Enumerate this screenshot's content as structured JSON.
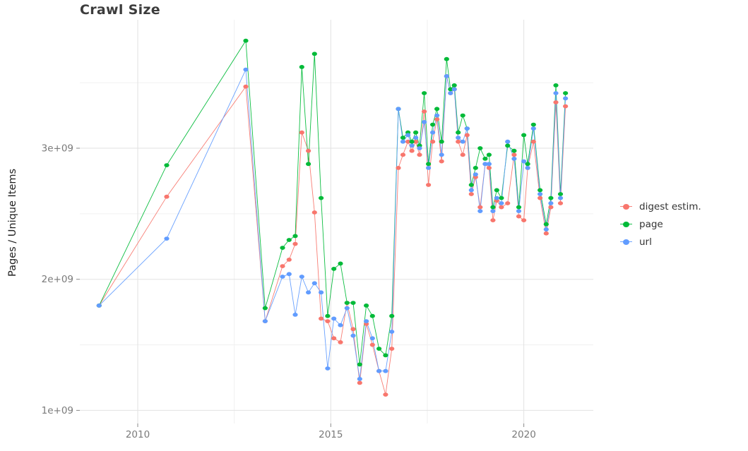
{
  "page": {
    "background": "#ffffff"
  },
  "chart_data": {
    "type": "line",
    "title": "Crawl Size",
    "subtitle": "",
    "xlabel": "",
    "ylabel": "Pages / Unique Items",
    "unit": "billions of pages (1e9)",
    "grid": true,
    "legend_position": "right",
    "xlim": [
      2008.5,
      2021.8
    ],
    "ylim": [
      0.9,
      3.98
    ],
    "x_ticks": [
      2010,
      2015,
      2020
    ],
    "x_minor_ticks": [
      2012.5,
      2017.5
    ],
    "y_ticks": [
      1,
      2,
      3
    ],
    "y_tick_labels": [
      "1e+09",
      "2e+09",
      "3e+09"
    ],
    "y_minor_ticks": [
      1.5,
      2.5,
      3.5
    ],
    "series": [
      {
        "name": "digest estim.",
        "color": "#F8766D",
        "points": [
          [
            2009.0,
            1.8
          ],
          [
            2010.75,
            2.63
          ],
          [
            2012.8,
            3.47
          ],
          [
            2013.3,
            1.68
          ],
          [
            2013.75,
            2.1
          ],
          [
            2013.92,
            2.15
          ],
          [
            2014.08,
            2.27
          ],
          [
            2014.25,
            3.12
          ],
          [
            2014.42,
            2.98
          ],
          [
            2014.58,
            2.51
          ],
          [
            2014.75,
            1.7
          ],
          [
            2014.92,
            1.68
          ],
          [
            2015.08,
            1.55
          ],
          [
            2015.25,
            1.52
          ],
          [
            2015.42,
            1.82
          ],
          [
            2015.58,
            1.62
          ],
          [
            2015.75,
            1.21
          ],
          [
            2015.92,
            1.66
          ],
          [
            2016.08,
            1.5
          ],
          [
            2016.25,
            1.3
          ],
          [
            2016.42,
            1.12
          ],
          [
            2016.58,
            1.47
          ],
          [
            2016.75,
            2.85
          ],
          [
            2016.87,
            2.95
          ],
          [
            2017.0,
            3.05
          ],
          [
            2017.1,
            2.98
          ],
          [
            2017.2,
            3.05
          ],
          [
            2017.3,
            2.95
          ],
          [
            2017.42,
            3.28
          ],
          [
            2017.53,
            2.72
          ],
          [
            2017.64,
            3.05
          ],
          [
            2017.75,
            3.22
          ],
          [
            2017.87,
            2.9
          ],
          [
            2018.0,
            3.55
          ],
          [
            2018.1,
            3.42
          ],
          [
            2018.2,
            3.45
          ],
          [
            2018.3,
            3.05
          ],
          [
            2018.42,
            2.95
          ],
          [
            2018.53,
            3.1
          ],
          [
            2018.64,
            2.65
          ],
          [
            2018.75,
            2.78
          ],
          [
            2018.87,
            2.55
          ],
          [
            2019.0,
            2.88
          ],
          [
            2019.1,
            2.85
          ],
          [
            2019.2,
            2.45
          ],
          [
            2019.3,
            2.6
          ],
          [
            2019.42,
            2.55
          ],
          [
            2019.58,
            2.58
          ],
          [
            2019.75,
            2.95
          ],
          [
            2019.87,
            2.48
          ],
          [
            2020.0,
            2.45
          ],
          [
            2020.1,
            2.85
          ],
          [
            2020.25,
            3.05
          ],
          [
            2020.42,
            2.62
          ],
          [
            2020.58,
            2.35
          ],
          [
            2020.7,
            2.55
          ],
          [
            2020.83,
            3.35
          ],
          [
            2020.95,
            2.58
          ],
          [
            2021.08,
            3.32
          ]
        ]
      },
      {
        "name": "page",
        "color": "#00BA38",
        "points": [
          [
            2009.0,
            1.8
          ],
          [
            2010.75,
            2.87
          ],
          [
            2012.8,
            3.82
          ],
          [
            2013.3,
            1.78
          ],
          [
            2013.75,
            2.24
          ],
          [
            2013.92,
            2.3
          ],
          [
            2014.08,
            2.33
          ],
          [
            2014.25,
            3.62
          ],
          [
            2014.42,
            2.88
          ],
          [
            2014.58,
            3.72
          ],
          [
            2014.75,
            2.62
          ],
          [
            2014.92,
            1.72
          ],
          [
            2015.08,
            2.08
          ],
          [
            2015.25,
            2.12
          ],
          [
            2015.42,
            1.82
          ],
          [
            2015.58,
            1.82
          ],
          [
            2015.75,
            1.35
          ],
          [
            2015.92,
            1.8
          ],
          [
            2016.08,
            1.72
          ],
          [
            2016.25,
            1.47
          ],
          [
            2016.42,
            1.42
          ],
          [
            2016.58,
            1.72
          ],
          [
            2016.75,
            3.3
          ],
          [
            2016.87,
            3.08
          ],
          [
            2017.0,
            3.12
          ],
          [
            2017.1,
            3.05
          ],
          [
            2017.2,
            3.12
          ],
          [
            2017.3,
            3.02
          ],
          [
            2017.42,
            3.42
          ],
          [
            2017.53,
            2.88
          ],
          [
            2017.64,
            3.18
          ],
          [
            2017.75,
            3.3
          ],
          [
            2017.87,
            3.05
          ],
          [
            2018.0,
            3.68
          ],
          [
            2018.1,
            3.45
          ],
          [
            2018.2,
            3.48
          ],
          [
            2018.3,
            3.12
          ],
          [
            2018.42,
            3.25
          ],
          [
            2018.53,
            3.15
          ],
          [
            2018.64,
            2.72
          ],
          [
            2018.75,
            2.85
          ],
          [
            2018.87,
            3.0
          ],
          [
            2019.0,
            2.92
          ],
          [
            2019.1,
            2.95
          ],
          [
            2019.2,
            2.55
          ],
          [
            2019.3,
            2.68
          ],
          [
            2019.42,
            2.62
          ],
          [
            2019.58,
            3.02
          ],
          [
            2019.75,
            2.98
          ],
          [
            2019.87,
            2.55
          ],
          [
            2020.0,
            3.1
          ],
          [
            2020.1,
            2.88
          ],
          [
            2020.25,
            3.18
          ],
          [
            2020.42,
            2.68
          ],
          [
            2020.58,
            2.42
          ],
          [
            2020.7,
            2.62
          ],
          [
            2020.83,
            3.48
          ],
          [
            2020.95,
            2.65
          ],
          [
            2021.08,
            3.42
          ]
        ]
      },
      {
        "name": "url",
        "color": "#619CFF",
        "points": [
          [
            2009.0,
            1.8
          ],
          [
            2010.75,
            2.31
          ],
          [
            2012.8,
            3.6
          ],
          [
            2013.3,
            1.68
          ],
          [
            2013.75,
            2.02
          ],
          [
            2013.92,
            2.04
          ],
          [
            2014.08,
            1.73
          ],
          [
            2014.25,
            2.02
          ],
          [
            2014.42,
            1.9
          ],
          [
            2014.58,
            1.97
          ],
          [
            2014.75,
            1.9
          ],
          [
            2014.92,
            1.32
          ],
          [
            2015.08,
            1.7
          ],
          [
            2015.25,
            1.65
          ],
          [
            2015.42,
            1.78
          ],
          [
            2015.58,
            1.57
          ],
          [
            2015.75,
            1.24
          ],
          [
            2015.92,
            1.68
          ],
          [
            2016.08,
            1.55
          ],
          [
            2016.25,
            1.3
          ],
          [
            2016.42,
            1.3
          ],
          [
            2016.58,
            1.6
          ],
          [
            2016.75,
            3.3
          ],
          [
            2016.87,
            3.05
          ],
          [
            2017.0,
            3.1
          ],
          [
            2017.1,
            3.02
          ],
          [
            2017.2,
            3.08
          ],
          [
            2017.3,
            3.0
          ],
          [
            2017.42,
            3.2
          ],
          [
            2017.53,
            2.85
          ],
          [
            2017.64,
            3.12
          ],
          [
            2017.75,
            3.25
          ],
          [
            2017.87,
            2.95
          ],
          [
            2018.0,
            3.55
          ],
          [
            2018.1,
            3.42
          ],
          [
            2018.2,
            3.45
          ],
          [
            2018.3,
            3.08
          ],
          [
            2018.42,
            3.05
          ],
          [
            2018.53,
            3.15
          ],
          [
            2018.64,
            2.68
          ],
          [
            2018.75,
            2.8
          ],
          [
            2018.87,
            2.52
          ],
          [
            2019.0,
            2.88
          ],
          [
            2019.1,
            2.88
          ],
          [
            2019.2,
            2.52
          ],
          [
            2019.3,
            2.62
          ],
          [
            2019.42,
            2.58
          ],
          [
            2019.58,
            3.05
          ],
          [
            2019.75,
            2.92
          ],
          [
            2019.87,
            2.52
          ],
          [
            2020.0,
            2.9
          ],
          [
            2020.1,
            2.85
          ],
          [
            2020.25,
            3.15
          ],
          [
            2020.42,
            2.65
          ],
          [
            2020.58,
            2.38
          ],
          [
            2020.7,
            2.58
          ],
          [
            2020.83,
            3.42
          ],
          [
            2020.95,
            2.62
          ],
          [
            2021.08,
            3.38
          ]
        ]
      }
    ]
  },
  "style": {
    "grid_major_color": "#e2e2e2",
    "grid_minor_color": "#f0f0f0",
    "tick_color": "#8a8a8a",
    "tick_label_color": "#7a7a7a"
  }
}
